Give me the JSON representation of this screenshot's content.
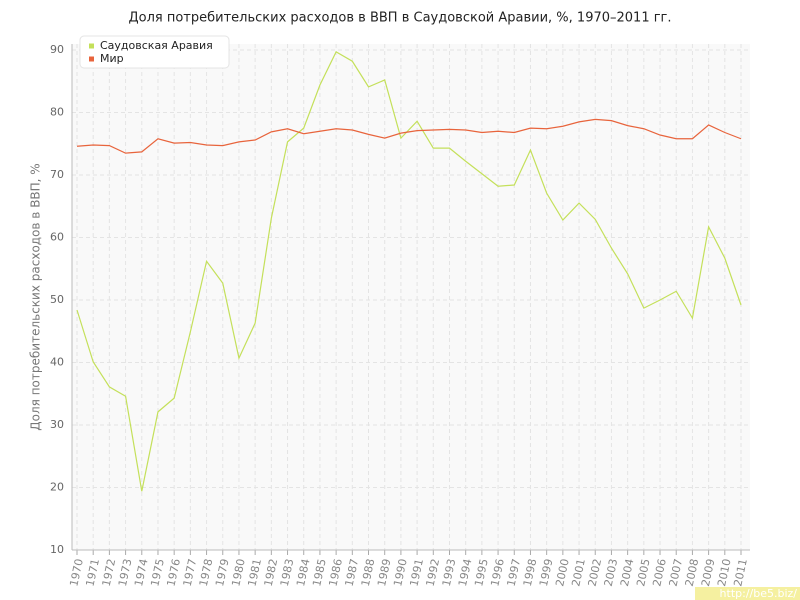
{
  "chart_data": {
    "type": "line",
    "title": "Доля потребительских расходов в ВВП в Саудовской Аравии, %, 1970–2011 гг.",
    "y_label": "Доля потребительских расходов в ВВП, %",
    "watermark": "http://be5.biz/",
    "categories": [
      "1970",
      "1971",
      "1972",
      "1973",
      "1974",
      "1975",
      "1976",
      "1977",
      "1978",
      "1979",
      "1980",
      "1981",
      "1982",
      "1983",
      "1984",
      "1985",
      "1986",
      "1987",
      "1988",
      "1989",
      "1990",
      "1991",
      "1992",
      "1993",
      "1994",
      "1995",
      "1996",
      "1997",
      "1998",
      "1999",
      "2000",
      "2001",
      "2002",
      "2003",
      "2004",
      "2005",
      "2006",
      "2007",
      "2008",
      "2009",
      "2010",
      "2011"
    ],
    "series": [
      {
        "name": "Саудовская Аравия",
        "color": "#c4e05a",
        "values": [
          48.4,
          40.1,
          36.1,
          34.6,
          19.4,
          32.1,
          34.3,
          44.9,
          56.2,
          52.7,
          40.7,
          46.3,
          63.1,
          75.3,
          77.5,
          84.4,
          89.7,
          88.2,
          84.1,
          85.2,
          75.9,
          78.6,
          74.3,
          74.3,
          72.2,
          70.2,
          68.2,
          68.4,
          74.0,
          67.1,
          62.8,
          65.5,
          62.9,
          58.3,
          54.2,
          48.7,
          50.0,
          51.4,
          47.1,
          61.7,
          56.7,
          49.2
        ]
      },
      {
        "name": "Мир",
        "color": "#e8643c",
        "values": [
          74.6,
          74.8,
          74.7,
          73.5,
          73.7,
          75.8,
          75.1,
          75.2,
          74.8,
          74.7,
          75.3,
          75.6,
          76.9,
          77.4,
          76.6,
          77.0,
          77.4,
          77.2,
          76.5,
          75.9,
          76.7,
          77.1,
          77.2,
          77.3,
          77.2,
          76.8,
          77.0,
          76.8,
          77.5,
          77.4,
          77.8,
          78.5,
          78.9,
          78.7,
          77.9,
          77.4,
          76.4,
          75.8,
          75.8,
          78.0,
          76.8,
          75.8
        ]
      }
    ],
    "ylim": [
      10,
      90
    ],
    "yticks": [
      10,
      20,
      30,
      40,
      50,
      60,
      70,
      80,
      90
    ],
    "grid": true
  }
}
